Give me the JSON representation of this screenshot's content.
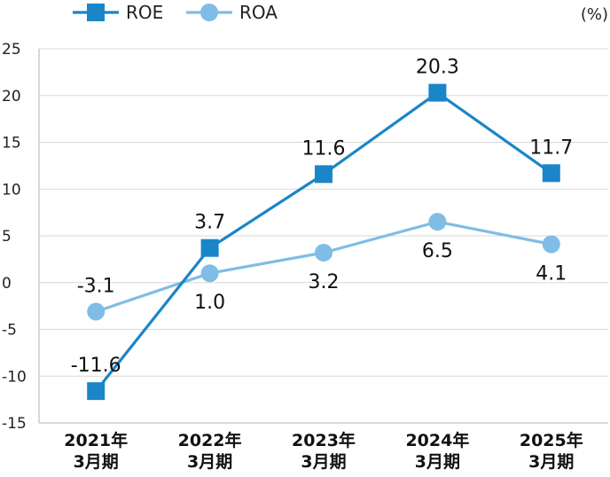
{
  "chart_data": {
    "type": "line",
    "unit_label": "(%)",
    "categories": [
      [
        "2021年",
        "3月期"
      ],
      [
        "2022年",
        "3月期"
      ],
      [
        "2023年",
        "3月期"
      ],
      [
        "2024年",
        "3月期"
      ],
      [
        "2025年",
        "3月期"
      ]
    ],
    "ylim": [
      -15,
      25
    ],
    "yticks": [
      "25",
      "20",
      "15",
      "10",
      "5",
      "0",
      "-5",
      "-10",
      "-15"
    ],
    "yticks_values": [
      25,
      20,
      15,
      10,
      5,
      0,
      -5,
      -10,
      -15
    ],
    "grid": true,
    "legend_position": "top-left",
    "series": [
      {
        "name": "ROE",
        "marker": "square",
        "color": "#1a86c8",
        "values": [
          -11.6,
          3.7,
          11.6,
          20.3,
          11.7
        ],
        "labels": [
          "-11.6",
          "3.7",
          "11.6",
          "20.3",
          "11.7"
        ],
        "label_position": [
          "above",
          "above",
          "above",
          "above",
          "above"
        ]
      },
      {
        "name": "ROA",
        "marker": "circle",
        "color": "#7fbde6",
        "values": [
          -3.1,
          1.0,
          3.2,
          6.5,
          4.1
        ],
        "labels": [
          "-3.1",
          "1.0",
          "3.2",
          "6.5",
          "4.1"
        ],
        "label_position": [
          "above",
          "below",
          "below",
          "below",
          "below"
        ]
      }
    ]
  }
}
